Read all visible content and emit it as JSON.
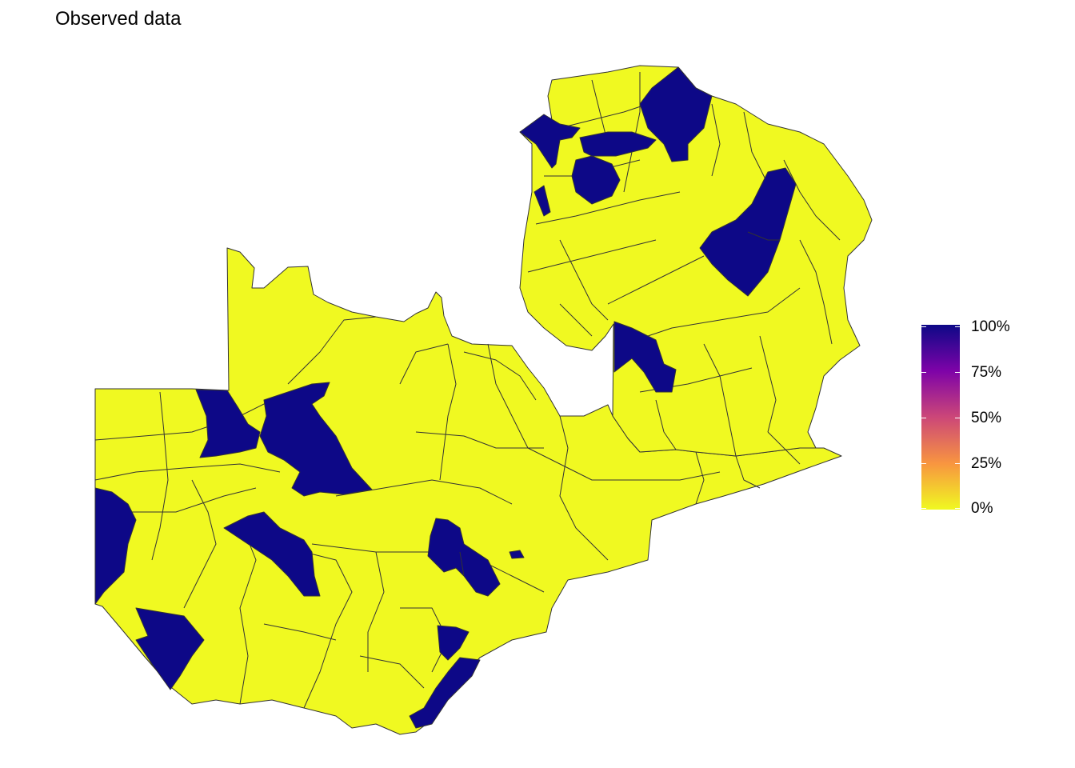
{
  "title": "Observed data",
  "colors": {
    "low": "#f0f921",
    "high": "#0d0887",
    "border": "#333333"
  },
  "legend": {
    "labels": [
      "100%",
      "75%",
      "50%",
      "25%",
      "0%"
    ],
    "values": [
      1.0,
      0.75,
      0.5,
      0.25,
      0.0
    ],
    "palette": "plasma"
  },
  "regions": {
    "observed_high_count": 17,
    "observed_low_value": 0.0,
    "observed_high_value": 1.0
  }
}
